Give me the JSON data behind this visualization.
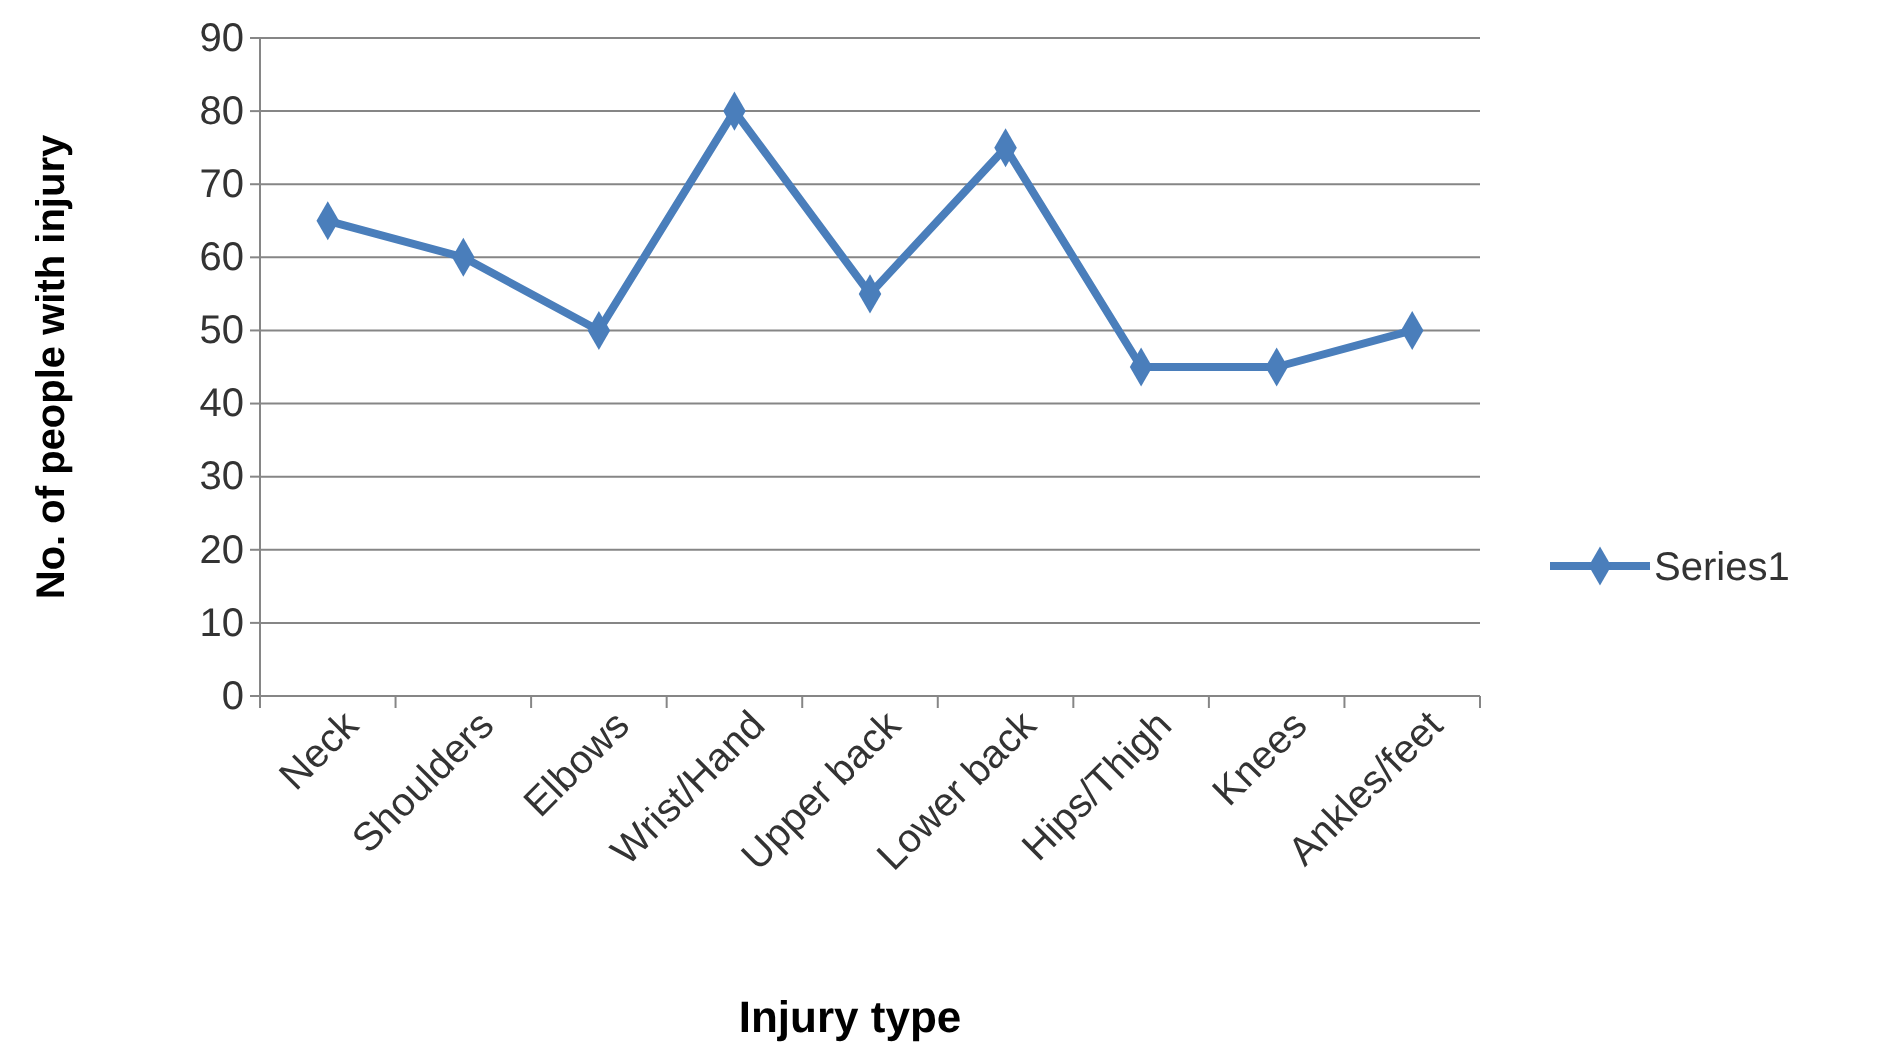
{
  "chart_data": {
    "type": "line",
    "xlabel": "Injury type",
    "ylabel": "No. of people with injury",
    "categories": [
      "Neck",
      "Shoulders",
      "Elbows",
      "Wrist/Hand",
      "Upper back",
      "Lower back",
      "Hips/Thigh",
      "Knees",
      "Ankles/feet"
    ],
    "series": [
      {
        "name": "Series1",
        "color": "#4a7ebb",
        "values": [
          65,
          60,
          50,
          80,
          55,
          75,
          45,
          45,
          50
        ]
      }
    ],
    "ylim": [
      0,
      90
    ],
    "yticks": [
      0,
      10,
      20,
      30,
      40,
      50,
      60,
      70,
      80,
      90
    ],
    "grid": "y",
    "legend": "right",
    "marker": "diamond",
    "line_style": "solid"
  }
}
